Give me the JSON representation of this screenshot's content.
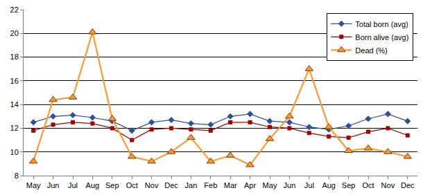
{
  "chart_data": {
    "type": "line",
    "categories": [
      "May",
      "Jun",
      "Jul",
      "Aug",
      "Sep",
      "Oct",
      "Nov",
      "Dec",
      "Jan",
      "Feb",
      "Mar",
      "Apr",
      "May",
      "Jun",
      "Jul",
      "Aug",
      "Sep",
      "Oct",
      "Nov",
      "Dec"
    ],
    "series": [
      {
        "name": "Total born (avg)",
        "color": "#2e4f9c",
        "marker": "diamond",
        "line_style": "solid",
        "values": [
          12.5,
          13.0,
          13.1,
          12.9,
          12.6,
          11.8,
          12.5,
          12.7,
          12.4,
          12.3,
          13.0,
          13.2,
          12.6,
          12.5,
          12.1,
          11.9,
          12.2,
          12.8,
          13.2,
          12.6
        ]
      },
      {
        "name": "Born alive (avg)",
        "color": "#a00000",
        "marker": "square",
        "line_style": "solid",
        "values": [
          11.8,
          12.3,
          12.5,
          12.4,
          12.0,
          11.0,
          11.9,
          12.0,
          11.9,
          11.8,
          12.5,
          12.5,
          12.1,
          12.0,
          11.6,
          11.3,
          11.2,
          11.7,
          12.0,
          11.4
        ]
      },
      {
        "name": "Dead (%)",
        "color": "#ff9933",
        "marker": "triangle",
        "line_style": "solid",
        "values": [
          9.2,
          14.4,
          14.6,
          20.1,
          12.8,
          9.6,
          9.2,
          10.0,
          11.2,
          9.2,
          9.7,
          8.9,
          11.1,
          13.0,
          17.0,
          12.1,
          10.1,
          10.3,
          10.0,
          9.6
        ]
      }
    ],
    "ylim": [
      8,
      22
    ],
    "yticks": [
      8,
      10,
      12,
      14,
      16,
      18,
      20,
      22
    ],
    "grid": true,
    "legend": "top right"
  }
}
